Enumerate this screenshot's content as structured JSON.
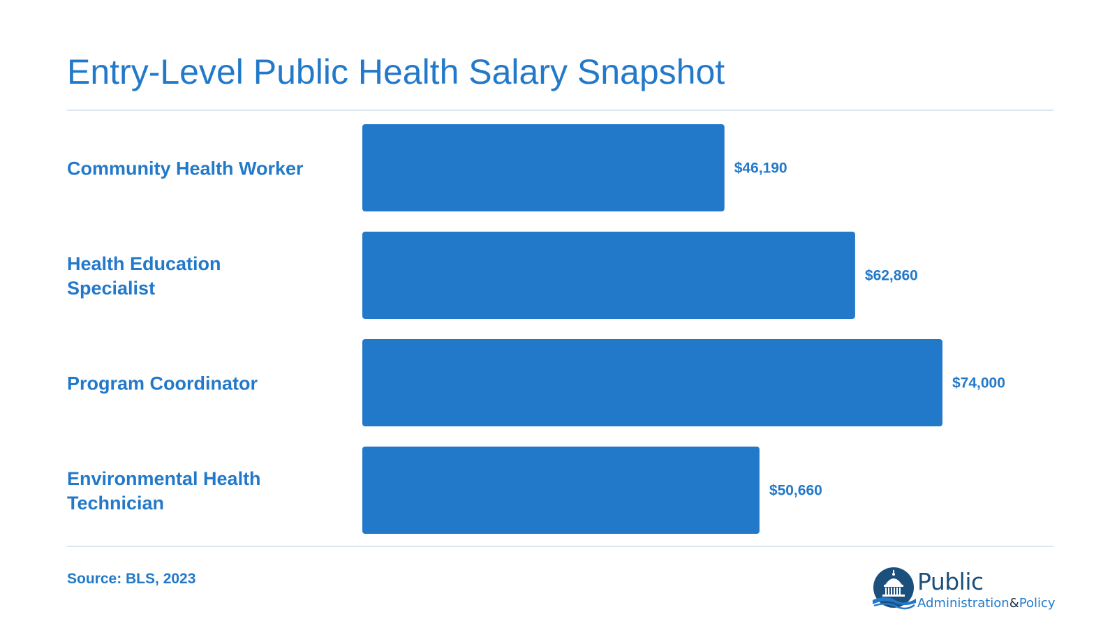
{
  "title": "Entry-Level Public Health Salary Snapshot",
  "source": "Source: BLS, 2023",
  "colors": {
    "bar": "#2379c9",
    "text": "#2379c9",
    "rule": "#dde6ee"
  },
  "chart_data": {
    "type": "bar",
    "orientation": "horizontal",
    "categories": [
      [
        "Community Health Worker"
      ],
      [
        "Health Education",
        "Specialist"
      ],
      [
        "Program Coordinator"
      ],
      [
        "Environmental Health",
        "Technician"
      ]
    ],
    "values": [
      46190,
      62860,
      74000,
      50660
    ],
    "value_labels": [
      "$46,190",
      "$62,860",
      "$74,000",
      "$50,660"
    ],
    "xlim": [
      0,
      74000
    ],
    "grid": false
  },
  "logo": {
    "word": "Public",
    "sub_part1": "Administration",
    "sub_part2": "&",
    "sub_part3": "Policy",
    "icon": "capitol-dome-icon"
  }
}
